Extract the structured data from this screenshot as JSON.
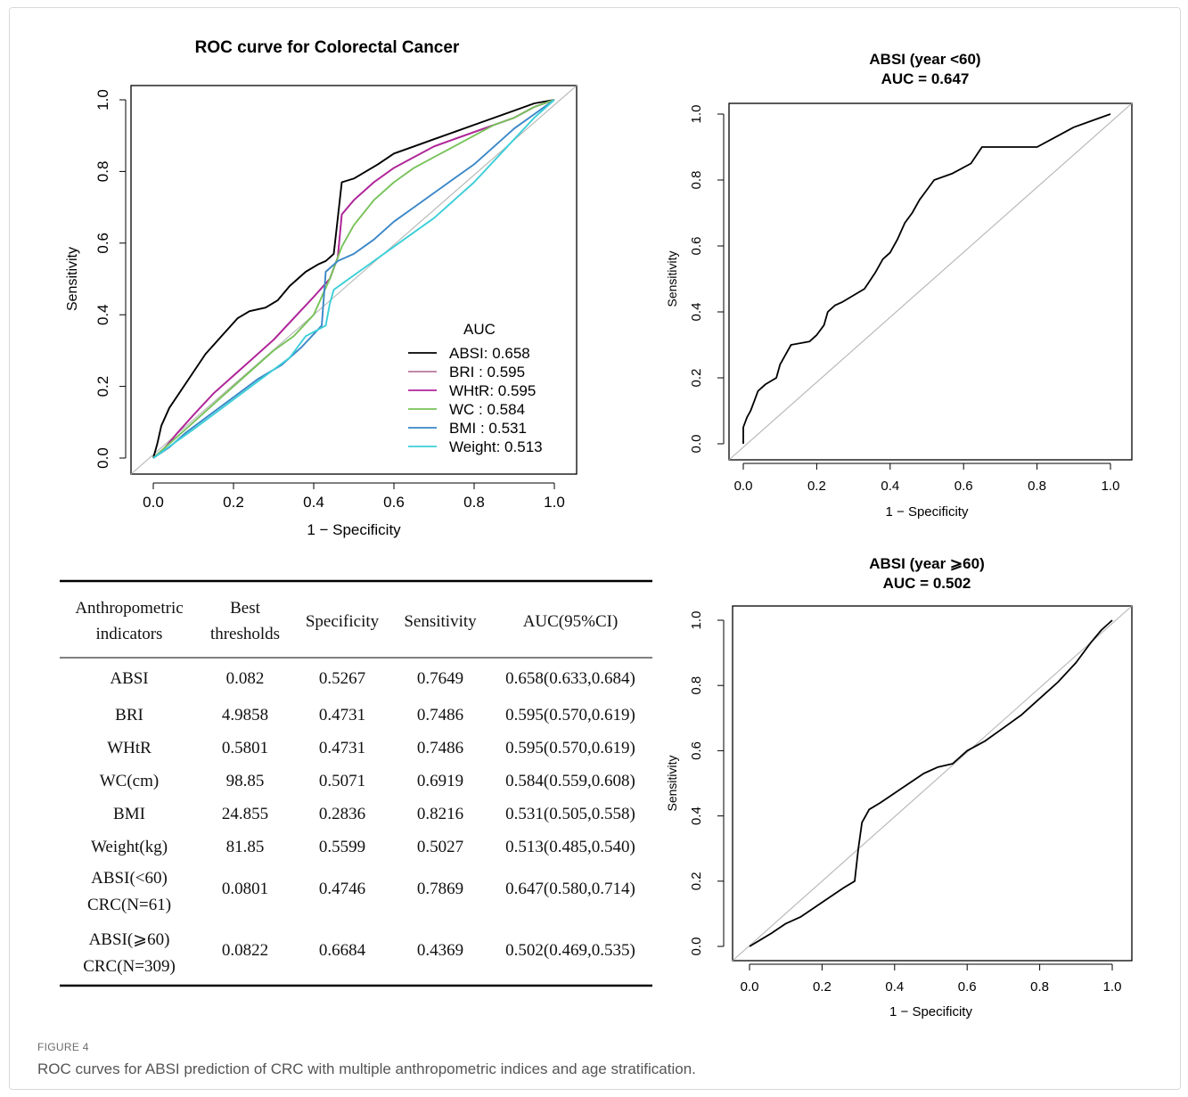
{
  "caption": {
    "label": "FIGURE 4",
    "text": "ROC curves for ABSI prediction of CRC with multiple anthropometric indices and age stratification."
  },
  "table": {
    "headers": [
      [
        "Anthropometric",
        "indicators"
      ],
      [
        "Best",
        "thresholds"
      ],
      [
        "Specificity"
      ],
      [
        "Sensitivity"
      ],
      [
        "AUC(95%CI)"
      ]
    ],
    "rows": [
      [
        [
          "ABSI"
        ],
        "0.082",
        "0.5267",
        "0.7649",
        "0.658(0.633,0.684)"
      ],
      [
        [
          "BRI"
        ],
        "4.9858",
        "0.4731",
        "0.7486",
        "0.595(0.570,0.619)"
      ],
      [
        [
          "WHtR"
        ],
        "0.5801",
        "0.4731",
        "0.7486",
        "0.595(0.570,0.619)"
      ],
      [
        [
          "WC(cm)"
        ],
        "98.85",
        "0.5071",
        "0.6919",
        "0.584(0.559,0.608)"
      ],
      [
        [
          "BMI"
        ],
        "24.855",
        "0.2836",
        "0.8216",
        "0.531(0.505,0.558)"
      ],
      [
        [
          "Weight(kg)"
        ],
        "81.85",
        "0.5599",
        "0.5027",
        "0.513(0.485,0.540)"
      ],
      [
        [
          "ABSI(<60)",
          "CRC(N=61)"
        ],
        "0.0801",
        "0.4746",
        "0.7869",
        "0.647(0.580,0.714)"
      ],
      [
        [
          "ABSI(⩾60)",
          "CRC(N=309)"
        ],
        "0.0822",
        "0.6684",
        "0.4369",
        "0.502(0.469,0.535)"
      ]
    ]
  },
  "chart_data": [
    {
      "type": "line",
      "title": "ROC curve for Colorectal Cancer",
      "xlabel": "1 − Specificity",
      "ylabel": "Sensitivity",
      "xlim": [
        0,
        1
      ],
      "ylim": [
        0,
        1
      ],
      "xticks": [
        "0.0",
        "0.2",
        "0.4",
        "0.6",
        "0.8",
        "1.0"
      ],
      "yticks": [
        "0.0",
        "0.2",
        "0.4",
        "0.6",
        "0.8",
        "1.0"
      ],
      "legend_title": "AUC",
      "legend_position": "bottom-right",
      "diagonal_reference": true,
      "series": [
        {
          "name": "ABSI",
          "auc_label": ": 0.658",
          "color": "#000000",
          "points": [
            [
              0,
              0
            ],
            [
              0.01,
              0.04
            ],
            [
              0.02,
              0.09
            ],
            [
              0.04,
              0.14
            ],
            [
              0.07,
              0.19
            ],
            [
              0.1,
              0.24
            ],
            [
              0.13,
              0.29
            ],
            [
              0.17,
              0.34
            ],
            [
              0.21,
              0.39
            ],
            [
              0.24,
              0.41
            ],
            [
              0.28,
              0.42
            ],
            [
              0.31,
              0.44
            ],
            [
              0.34,
              0.48
            ],
            [
              0.38,
              0.52
            ],
            [
              0.41,
              0.54
            ],
            [
              0.43,
              0.55
            ],
            [
              0.45,
              0.57
            ],
            [
              0.47,
              0.77
            ],
            [
              0.5,
              0.78
            ],
            [
              0.53,
              0.8
            ],
            [
              0.56,
              0.82
            ],
            [
              0.6,
              0.85
            ],
            [
              0.65,
              0.87
            ],
            [
              0.7,
              0.89
            ],
            [
              0.75,
              0.91
            ],
            [
              0.8,
              0.93
            ],
            [
              0.85,
              0.95
            ],
            [
              0.9,
              0.97
            ],
            [
              0.95,
              0.99
            ],
            [
              1,
              1
            ]
          ]
        },
        {
          "name": "BRI",
          "auc_label": "  : 0.595",
          "color": "#b8789b",
          "points": [
            [
              0,
              0
            ],
            [
              0.03,
              0.03
            ],
            [
              0.06,
              0.07
            ],
            [
              0.1,
              0.12
            ],
            [
              0.15,
              0.18
            ],
            [
              0.2,
              0.23
            ],
            [
              0.25,
              0.28
            ],
            [
              0.3,
              0.33
            ],
            [
              0.35,
              0.39
            ],
            [
              0.4,
              0.45
            ],
            [
              0.44,
              0.5
            ],
            [
              0.46,
              0.56
            ],
            [
              0.47,
              0.68
            ],
            [
              0.5,
              0.72
            ],
            [
              0.55,
              0.77
            ],
            [
              0.6,
              0.81
            ],
            [
              0.65,
              0.84
            ],
            [
              0.7,
              0.87
            ],
            [
              0.75,
              0.89
            ],
            [
              0.8,
              0.91
            ],
            [
              0.85,
              0.93
            ],
            [
              0.9,
              0.95
            ],
            [
              0.95,
              0.98
            ],
            [
              1,
              1
            ]
          ]
        },
        {
          "name": "WHtR",
          "auc_label": ": 0.595",
          "color": "#b1269b",
          "points": [
            [
              0,
              0
            ],
            [
              0.03,
              0.03
            ],
            [
              0.06,
              0.07
            ],
            [
              0.1,
              0.12
            ],
            [
              0.15,
              0.18
            ],
            [
              0.2,
              0.23
            ],
            [
              0.25,
              0.28
            ],
            [
              0.3,
              0.33
            ],
            [
              0.35,
              0.39
            ],
            [
              0.4,
              0.45
            ],
            [
              0.44,
              0.5
            ],
            [
              0.46,
              0.56
            ],
            [
              0.47,
              0.68
            ],
            [
              0.5,
              0.72
            ],
            [
              0.55,
              0.77
            ],
            [
              0.6,
              0.81
            ],
            [
              0.65,
              0.84
            ],
            [
              0.7,
              0.87
            ],
            [
              0.75,
              0.89
            ],
            [
              0.8,
              0.91
            ],
            [
              0.85,
              0.93
            ],
            [
              0.9,
              0.95
            ],
            [
              0.95,
              0.98
            ],
            [
              1,
              1
            ]
          ]
        },
        {
          "name": "WC",
          "auc_label": "   : 0.584",
          "color": "#77c25a",
          "points": [
            [
              0,
              0
            ],
            [
              0.03,
              0.03
            ],
            [
              0.07,
              0.07
            ],
            [
              0.12,
              0.12
            ],
            [
              0.18,
              0.18
            ],
            [
              0.24,
              0.24
            ],
            [
              0.3,
              0.3
            ],
            [
              0.35,
              0.34
            ],
            [
              0.4,
              0.4
            ],
            [
              0.44,
              0.5
            ],
            [
              0.47,
              0.59
            ],
            [
              0.5,
              0.65
            ],
            [
              0.55,
              0.72
            ],
            [
              0.6,
              0.77
            ],
            [
              0.65,
              0.81
            ],
            [
              0.7,
              0.84
            ],
            [
              0.75,
              0.87
            ],
            [
              0.8,
              0.9
            ],
            [
              0.85,
              0.93
            ],
            [
              0.9,
              0.95
            ],
            [
              0.95,
              0.98
            ],
            [
              1,
              1
            ]
          ]
        },
        {
          "name": "BMI",
          "auc_label": "  : 0.531",
          "color": "#3a87c8",
          "points": [
            [
              0,
              0
            ],
            [
              0.04,
              0.03
            ],
            [
              0.08,
              0.07
            ],
            [
              0.14,
              0.12
            ],
            [
              0.2,
              0.17
            ],
            [
              0.26,
              0.22
            ],
            [
              0.32,
              0.26
            ],
            [
              0.37,
              0.31
            ],
            [
              0.42,
              0.37
            ],
            [
              0.43,
              0.52
            ],
            [
              0.46,
              0.55
            ],
            [
              0.5,
              0.57
            ],
            [
              0.55,
              0.61
            ],
            [
              0.6,
              0.66
            ],
            [
              0.65,
              0.7
            ],
            [
              0.7,
              0.74
            ],
            [
              0.75,
              0.78
            ],
            [
              0.8,
              0.82
            ],
            [
              0.85,
              0.87
            ],
            [
              0.9,
              0.92
            ],
            [
              0.95,
              0.96
            ],
            [
              1,
              1
            ]
          ]
        },
        {
          "name": "Weight",
          "auc_label": ": 0.513",
          "color": "#3ccfd8",
          "points": [
            [
              0,
              0
            ],
            [
              0.05,
              0.04
            ],
            [
              0.1,
              0.08
            ],
            [
              0.16,
              0.13
            ],
            [
              0.22,
              0.18
            ],
            [
              0.28,
              0.23
            ],
            [
              0.34,
              0.28
            ],
            [
              0.38,
              0.34
            ],
            [
              0.43,
              0.37
            ],
            [
              0.44,
              0.43
            ],
            [
              0.45,
              0.47
            ],
            [
              0.5,
              0.51
            ],
            [
              0.55,
              0.55
            ],
            [
              0.6,
              0.59
            ],
            [
              0.65,
              0.63
            ],
            [
              0.7,
              0.67
            ],
            [
              0.75,
              0.72
            ],
            [
              0.8,
              0.77
            ],
            [
              0.85,
              0.83
            ],
            [
              0.9,
              0.89
            ],
            [
              0.95,
              0.95
            ],
            [
              1,
              1
            ]
          ]
        }
      ]
    },
    {
      "type": "line",
      "title": "ABSI (year <60)",
      "subtitle": "AUC = 0.647",
      "xlabel": "1 − Specificity",
      "ylabel": "Sensitivity",
      "xlim": [
        0,
        1
      ],
      "ylim": [
        0,
        1
      ],
      "xticks": [
        "0.0",
        "0.2",
        "0.4",
        "0.6",
        "0.8",
        "1.0"
      ],
      "yticks": [
        "0.0",
        "0.2",
        "0.4",
        "0.6",
        "0.8",
        "1.0"
      ],
      "diagonal_reference": true,
      "series": [
        {
          "color": "#000000",
          "points": [
            [
              0,
              0
            ],
            [
              0,
              0.05
            ],
            [
              0.01,
              0.08
            ],
            [
              0.02,
              0.1
            ],
            [
              0.03,
              0.13
            ],
            [
              0.04,
              0.16
            ],
            [
              0.06,
              0.18
            ],
            [
              0.09,
              0.2
            ],
            [
              0.1,
              0.24
            ],
            [
              0.12,
              0.28
            ],
            [
              0.13,
              0.3
            ],
            [
              0.18,
              0.31
            ],
            [
              0.2,
              0.33
            ],
            [
              0.22,
              0.36
            ],
            [
              0.23,
              0.4
            ],
            [
              0.25,
              0.42
            ],
            [
              0.27,
              0.43
            ],
            [
              0.3,
              0.45
            ],
            [
              0.33,
              0.47
            ],
            [
              0.36,
              0.52
            ],
            [
              0.38,
              0.56
            ],
            [
              0.4,
              0.58
            ],
            [
              0.42,
              0.62
            ],
            [
              0.44,
              0.67
            ],
            [
              0.46,
              0.7
            ],
            [
              0.48,
              0.74
            ],
            [
              0.5,
              0.77
            ],
            [
              0.52,
              0.8
            ],
            [
              0.57,
              0.82
            ],
            [
              0.62,
              0.85
            ],
            [
              0.65,
              0.9
            ],
            [
              0.8,
              0.9
            ],
            [
              0.85,
              0.93
            ],
            [
              0.9,
              0.96
            ],
            [
              0.95,
              0.98
            ],
            [
              1,
              1
            ]
          ]
        }
      ]
    },
    {
      "type": "line",
      "title": "ABSI (year ⩾60)",
      "subtitle": "AUC = 0.502",
      "xlabel": "1 − Specificity",
      "ylabel": "Sensitivity",
      "xlim": [
        0,
        1
      ],
      "ylim": [
        0,
        1
      ],
      "xticks": [
        "0.0",
        "0.2",
        "0.4",
        "0.6",
        "0.8",
        "1.0"
      ],
      "yticks": [
        "0.0",
        "0.2",
        "0.4",
        "0.6",
        "0.8",
        "1.0"
      ],
      "diagonal_reference": true,
      "series": [
        {
          "color": "#000000",
          "points": [
            [
              0,
              0
            ],
            [
              0.03,
              0.02
            ],
            [
              0.06,
              0.04
            ],
            [
              0.1,
              0.07
            ],
            [
              0.14,
              0.09
            ],
            [
              0.18,
              0.12
            ],
            [
              0.22,
              0.15
            ],
            [
              0.26,
              0.18
            ],
            [
              0.29,
              0.2
            ],
            [
              0.3,
              0.3
            ],
            [
              0.31,
              0.38
            ],
            [
              0.33,
              0.42
            ],
            [
              0.36,
              0.44
            ],
            [
              0.4,
              0.47
            ],
            [
              0.44,
              0.5
            ],
            [
              0.48,
              0.53
            ],
            [
              0.52,
              0.55
            ],
            [
              0.56,
              0.56
            ],
            [
              0.6,
              0.6
            ],
            [
              0.65,
              0.63
            ],
            [
              0.7,
              0.67
            ],
            [
              0.75,
              0.71
            ],
            [
              0.8,
              0.76
            ],
            [
              0.85,
              0.81
            ],
            [
              0.9,
              0.87
            ],
            [
              0.94,
              0.93
            ],
            [
              0.97,
              0.97
            ],
            [
              1,
              1
            ]
          ]
        }
      ]
    }
  ]
}
